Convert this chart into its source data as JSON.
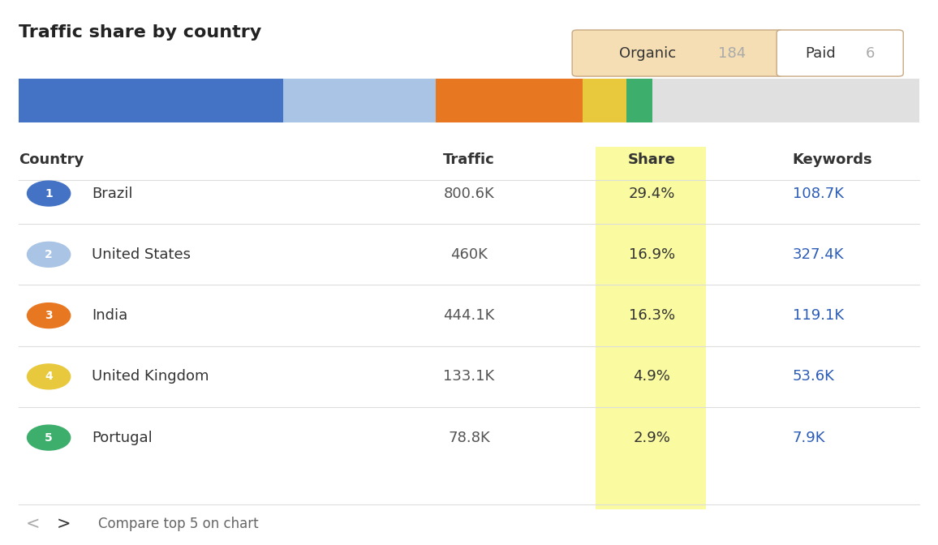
{
  "title": "Traffic share by country",
  "organic_label": "Organic",
  "organic_value": "184",
  "paid_label": "Paid",
  "paid_value": "6",
  "organic_bg": "#F5DEB3",
  "paid_bg": "#FFFFFF",
  "columns": [
    "Country",
    "Traffic",
    "Share",
    "Keywords"
  ],
  "rows": [
    {
      "rank": 1,
      "country": "Brazil",
      "traffic": "800.6K",
      "share": "29.4%",
      "keywords": "108.7K",
      "circle_color": "#4472C4",
      "share_pct": 29.4
    },
    {
      "rank": 2,
      "country": "United States",
      "traffic": "460K",
      "share": "16.9%",
      "keywords": "327.4K",
      "circle_color": "#A9C4E4",
      "share_pct": 16.9
    },
    {
      "rank": 3,
      "country": "India",
      "traffic": "444.1K",
      "share": "16.3%",
      "keywords": "119.1K",
      "circle_color": "#E87722",
      "share_pct": 16.3
    },
    {
      "rank": 4,
      "country": "United Kingdom",
      "traffic": "133.1K",
      "share": "4.9%",
      "keywords": "53.6K",
      "circle_color": "#E8C93D",
      "share_pct": 4.9
    },
    {
      "rank": 5,
      "country": "Portugal",
      "traffic": "78.8K",
      "share": "2.9%",
      "keywords": "7.9K",
      "circle_color": "#3DAE6B",
      "share_pct": 2.9
    }
  ],
  "bar_colors": [
    "#4472C4",
    "#A9C4E4",
    "#E87722",
    "#E8C93D",
    "#3DAE6B"
  ],
  "bar_remaining_color": "#E0E0E0",
  "share_highlight_color": "#FAFAA0",
  "keyword_link_color": "#2B5CB8",
  "header_color": "#333333",
  "row_separator_color": "#DDDDDD",
  "background_color": "#FFFFFF",
  "nav_text": "Compare top 5 on chart"
}
